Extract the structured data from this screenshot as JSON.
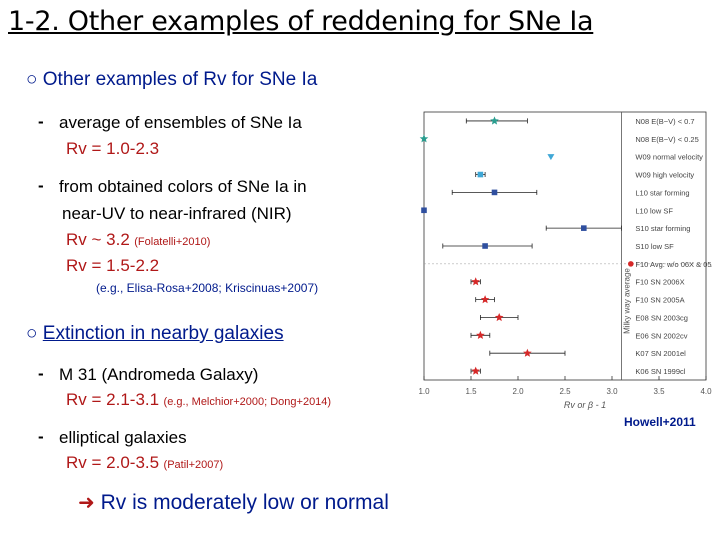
{
  "title": "1-2. Other examples of reddening for SNe Ia",
  "section1": {
    "bullet": "○",
    "heading": "Other examples of Rv for SNe Ia",
    "items": [
      {
        "dash": "-",
        "text": "average of ensembles of SNe Ia",
        "rv": "Rv = 1.0-2.3"
      },
      {
        "dash": "-",
        "text_line1": "from obtained colors of SNe Ia in",
        "text_line2": "near-UV to near-infrared (NIR)",
        "rv1": "Rv ~ 3.2",
        "rv1_ref": "(Folatelli+2010)",
        "rv2": "Rv = 1.5-2.2",
        "refs": "(e.g., Elisa-Rosa+2008; Kriscinuas+2007)"
      }
    ]
  },
  "section2": {
    "bullet": "○",
    "heading": "Extinction in nearby galaxies",
    "items": [
      {
        "dash": "-",
        "text": "M 31 (Andromeda Galaxy)",
        "rv": "Rv = 2.1-3.1",
        "ref": "(e.g., Melchior+2000; Dong+2014)"
      },
      {
        "dash": "-",
        "text": "elliptical galaxies",
        "rv": "Rv = 2.0-3.5",
        "ref": "(Patil+2007)"
      }
    ]
  },
  "conclusion": {
    "arrow": "➜",
    "text": "Rv is moderately low or normal"
  },
  "credit": "Howell+2011",
  "chart_data": {
    "type": "scatter",
    "title": "",
    "xlabel": "Rv or β - 1",
    "ylabel": "Milky way average",
    "xlim": [
      1.0,
      4.0
    ],
    "x_ticks": [
      "1.0",
      "1.5",
      "2.0",
      "2.5",
      "3.0",
      "3.5",
      "4.0"
    ],
    "reference_line_x": 3.1,
    "divider_after_row": 8,
    "colors": {
      "teal": "#2a9d8f",
      "blue": "#2f4f9f",
      "red": "#d62828",
      "sky": "#3fa7d6"
    },
    "rows": [
      {
        "label": "N08 E(B−V) < 0.7",
        "x": 1.75,
        "lo": 1.45,
        "hi": 2.1,
        "marker": "star",
        "color": "teal"
      },
      {
        "label": "N08 E(B−V) < 0.25",
        "x": 1.0,
        "lo": 1.0,
        "hi": 1.0,
        "marker": "star",
        "color": "teal"
      },
      {
        "label": "W09 normal velocity",
        "x": 2.35,
        "lo": 2.35,
        "hi": 2.35,
        "marker": "triangle",
        "color": "sky"
      },
      {
        "label": "W09 high velocity",
        "x": 1.6,
        "lo": 1.55,
        "hi": 1.65,
        "marker": "square",
        "color": "sky"
      },
      {
        "label": "L10 star forming",
        "x": 1.75,
        "lo": 1.3,
        "hi": 2.2,
        "marker": "square",
        "color": "blue"
      },
      {
        "label": "L10 low SF",
        "x": 1.0,
        "lo": 1.0,
        "hi": 1.0,
        "marker": "square",
        "color": "blue"
      },
      {
        "label": "S10 star forming",
        "x": 2.7,
        "lo": 2.3,
        "hi": 3.1,
        "marker": "square",
        "color": "blue"
      },
      {
        "label": "S10 low SF",
        "x": 1.65,
        "lo": 1.2,
        "hi": 2.15,
        "marker": "square",
        "color": "blue"
      },
      {
        "label": "F10 Avg: w/o 06X & 05A",
        "x": 3.2,
        "lo": 3.2,
        "hi": 3.2,
        "marker": "circle",
        "color": "red"
      },
      {
        "label": "F10 SN 2006X",
        "x": 1.55,
        "lo": 1.5,
        "hi": 1.6,
        "marker": "star",
        "color": "red"
      },
      {
        "label": "F10 SN 2005A",
        "x": 1.65,
        "lo": 1.55,
        "hi": 1.75,
        "marker": "star",
        "color": "red"
      },
      {
        "label": "E08 SN 2003cg",
        "x": 1.8,
        "lo": 1.6,
        "hi": 2.0,
        "marker": "star",
        "color": "red"
      },
      {
        "label": "E06 SN 2002cv",
        "x": 1.6,
        "lo": 1.5,
        "hi": 1.7,
        "marker": "star",
        "color": "red"
      },
      {
        "label": "K07 SN 2001el",
        "x": 2.1,
        "lo": 1.7,
        "hi": 2.5,
        "marker": "star",
        "color": "red"
      },
      {
        "label": "K06 SN 1999cl",
        "x": 1.55,
        "lo": 1.5,
        "hi": 1.6,
        "marker": "star",
        "color": "red"
      }
    ]
  }
}
